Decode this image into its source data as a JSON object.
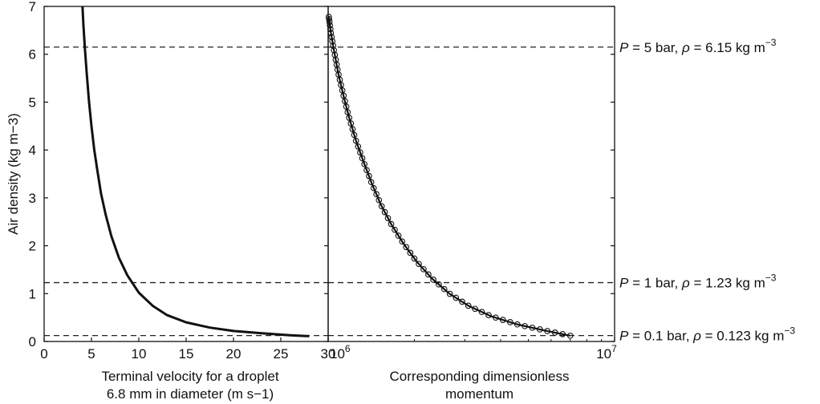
{
  "chart_data": [
    {
      "type": "line",
      "panel": "left",
      "xlabel_line1": "Terminal velocity for a droplet",
      "xlabel_line2": "6.8 mm in diameter (m s−1)",
      "ylabel": "Air density (kg m−3)",
      "xlim": [
        0,
        30
      ],
      "ylim": [
        0,
        7
      ],
      "xticks": [
        0,
        5,
        10,
        15,
        20,
        25,
        30
      ],
      "yticks": [
        0,
        1,
        2,
        3,
        4,
        5,
        6,
        7
      ],
      "grid": false,
      "series": [
        {
          "color": "#111111",
          "markers": false,
          "x": [
            4.05,
            4.15,
            4.3,
            4.5,
            4.75,
            5.0,
            5.3,
            5.6,
            6.0,
            6.5,
            7.1,
            7.9,
            8.8,
            10.0,
            11.5,
            13.0,
            15.0,
            17.5,
            20.0,
            23.0,
            26.0,
            28.0
          ],
          "y": [
            7.0,
            6.6,
            6.15,
            5.6,
            5.0,
            4.5,
            4.0,
            3.6,
            3.1,
            2.65,
            2.2,
            1.75,
            1.38,
            1.02,
            0.74,
            0.55,
            0.4,
            0.29,
            0.22,
            0.17,
            0.13,
            0.11
          ]
        }
      ],
      "reference_lines": [
        6.15,
        1.23,
        0.123
      ]
    },
    {
      "type": "line",
      "panel": "right",
      "xscale": "log",
      "xlabel_line1": "Corresponding dimensionless",
      "xlabel_line2": "momentum",
      "xlim": [
        1000000,
        10000000
      ],
      "ylim": [
        0,
        7
      ],
      "xticks": [
        1000000,
        10000000
      ],
      "xtick_labels": [
        "10",
        "10"
      ],
      "xtick_exponents": [
        "6",
        "7"
      ],
      "grid": false,
      "series": [
        {
          "color": "#111111",
          "markers": true,
          "marker": "open-circle",
          "x": [
            1005000,
            1022000,
            1050000,
            1085000,
            1130000,
            1180000,
            1250000,
            1330000,
            1420000,
            1530000,
            1660000,
            1830000,
            2030000,
            2300000,
            2650000,
            3100000,
            3700000,
            4550000,
            5700000,
            7000000
          ],
          "y": [
            6.78,
            6.45,
            6.05,
            5.6,
            5.15,
            4.7,
            4.2,
            3.75,
            3.3,
            2.85,
            2.45,
            2.05,
            1.68,
            1.32,
            1.0,
            0.74,
            0.53,
            0.36,
            0.23,
            0.12
          ]
        }
      ],
      "reference_lines": [
        6.15,
        1.23,
        0.123
      ]
    }
  ],
  "reference_labels": [
    {
      "y": 6.15,
      "p_italic": "P",
      "p_text": " = 5 bar, ",
      "rho_italic": "ρ",
      "rho_text": " = 6.15 kg m",
      "unit_sup": "−3"
    },
    {
      "y": 1.23,
      "p_italic": "P",
      "p_text": " = 1 bar, ",
      "rho_italic": "ρ",
      "rho_text": " = 1.23 kg m",
      "unit_sup": "−3"
    },
    {
      "y": 0.123,
      "p_italic": "P",
      "p_text": " = 0.1 bar, ",
      "rho_italic": "ρ",
      "rho_text": " = 0.123 kg m",
      "unit_sup": "−3"
    }
  ]
}
